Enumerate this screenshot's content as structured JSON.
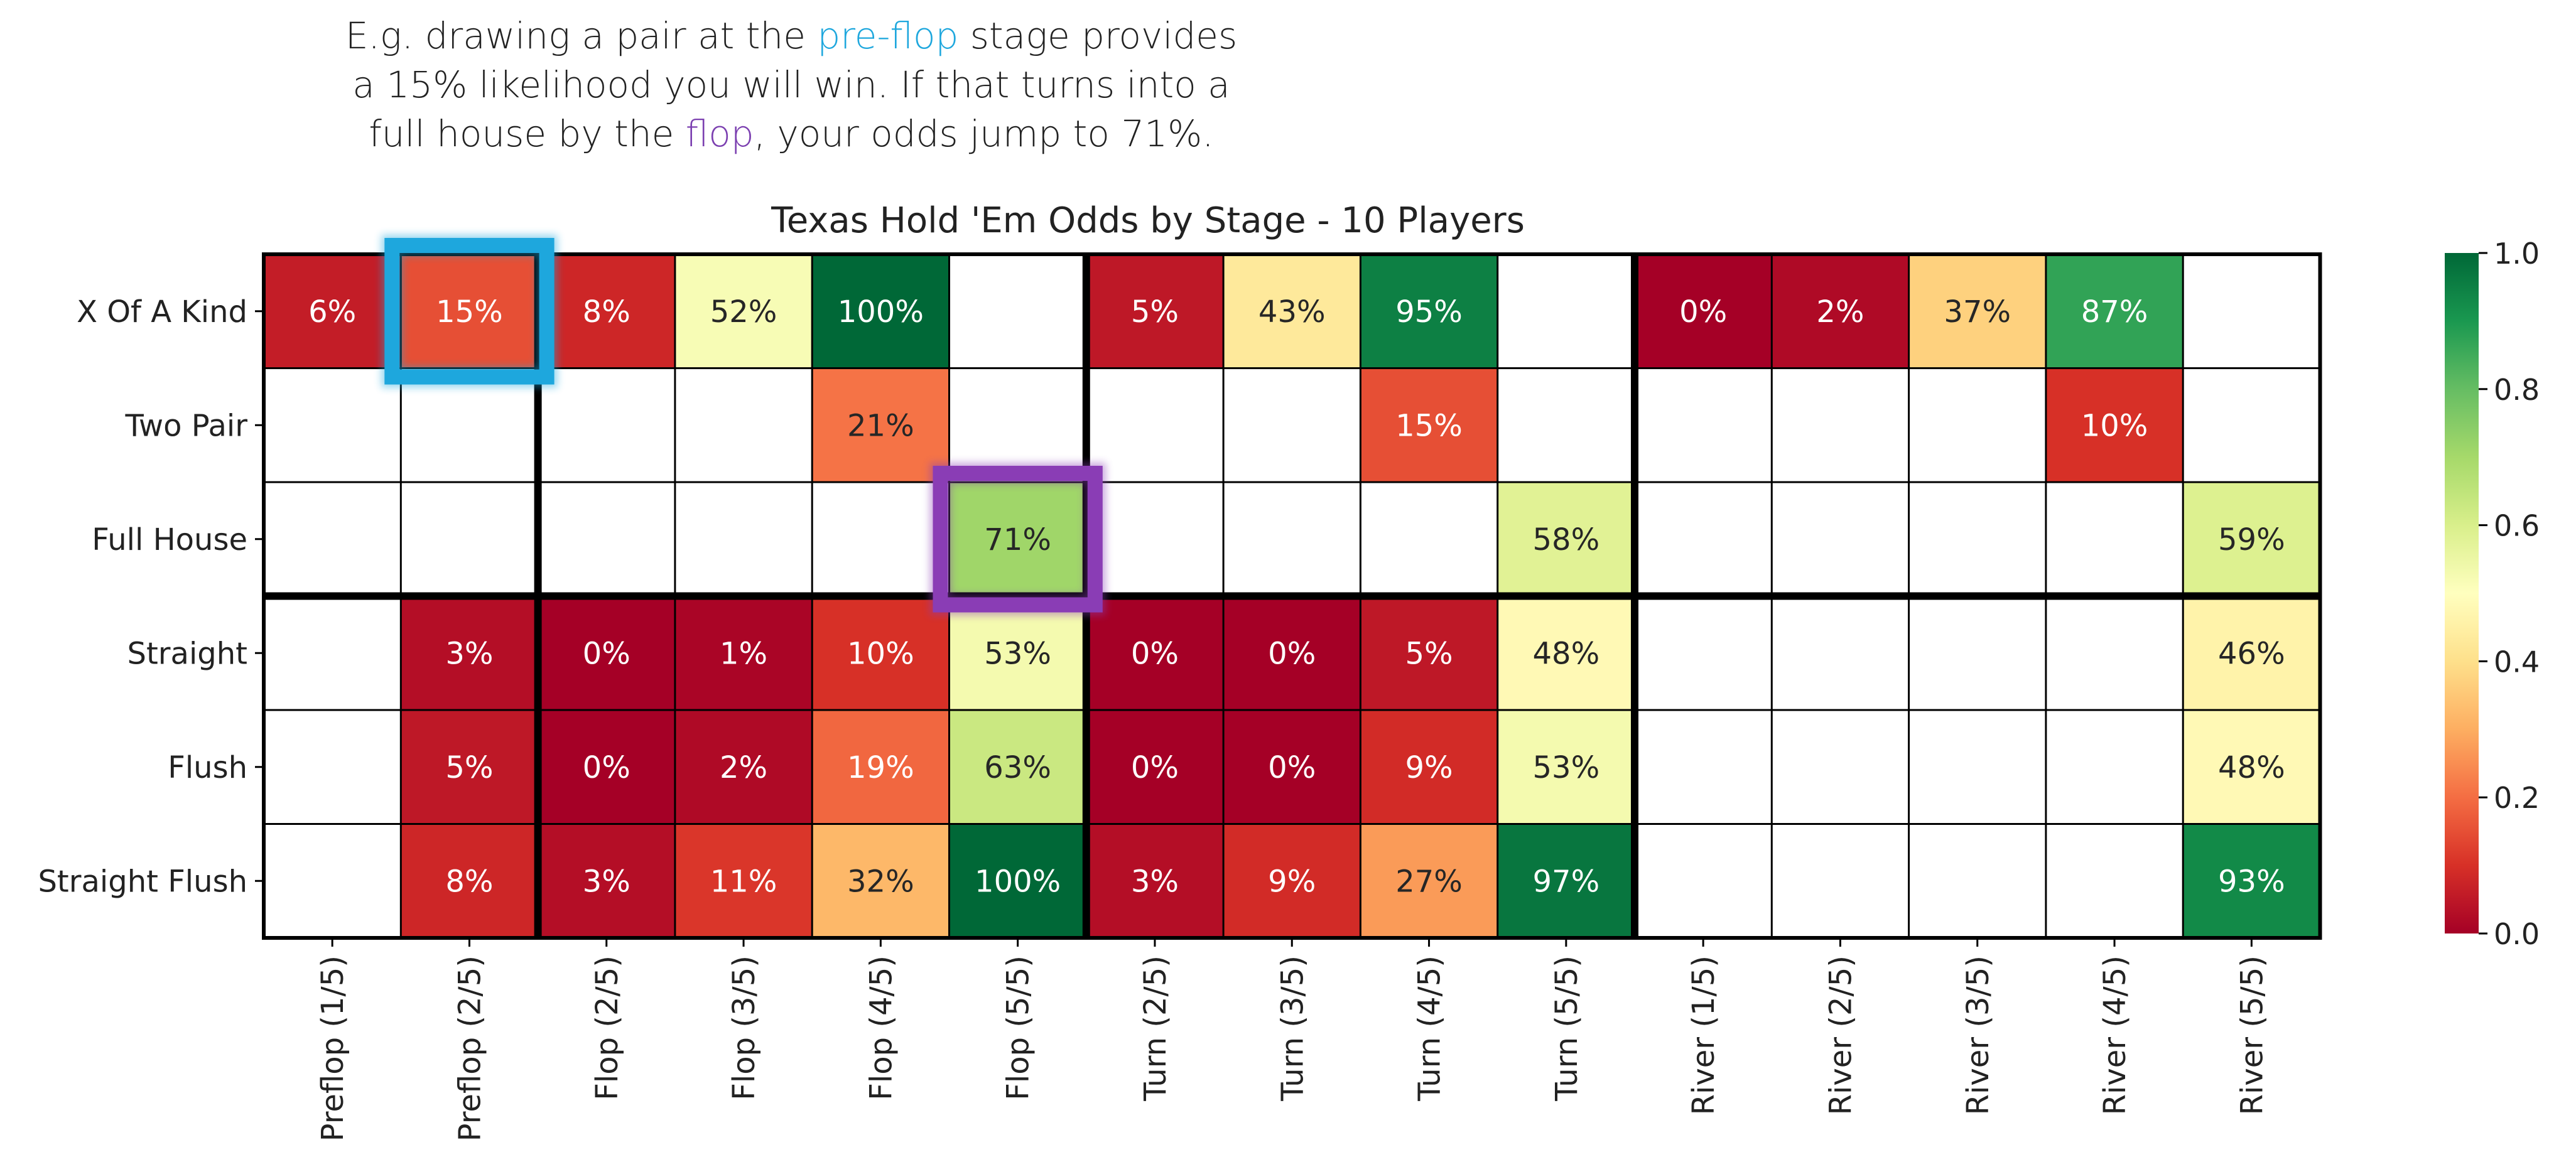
{
  "caption": {
    "line1_before": "E.g. drawing a pair at the ",
    "line1_highlight": "pre-flop",
    "line1_after": " stage provides",
    "line2": "a 15% likelihood you will win.  If that turns into a",
    "line3_before": "full house by the ",
    "line3_highlight": "flop",
    "line3_after": ", your odds jump to 71%.",
    "highlight_colors": {
      "pre-flop": "#1ea7dd",
      "flop": "#7b3fb0"
    }
  },
  "chart_data": {
    "type": "heatmap",
    "title": "Texas Hold 'Em Odds by Stage - 10 Players",
    "rows": [
      "X Of A Kind",
      "Two Pair",
      "Full House",
      "Straight",
      "Flush",
      "Straight Flush"
    ],
    "columns": [
      "Preflop (1/5)",
      "Preflop (2/5)",
      "Flop (2/5)",
      "Flop (3/5)",
      "Flop (4/5)",
      "Flop (5/5)",
      "Turn (2/5)",
      "Turn (3/5)",
      "Turn (4/5)",
      "Turn (5/5)",
      "River (1/5)",
      "River (2/5)",
      "River (3/5)",
      "River (4/5)",
      "River (5/5)"
    ],
    "values": [
      [
        0.06,
        0.15,
        0.08,
        0.52,
        1.0,
        null,
        0.05,
        0.43,
        0.95,
        null,
        0.0,
        0.02,
        0.37,
        0.87,
        null
      ],
      [
        null,
        null,
        null,
        null,
        0.21,
        null,
        null,
        null,
        0.15,
        null,
        null,
        null,
        null,
        0.1,
        null
      ],
      [
        null,
        null,
        null,
        null,
        null,
        0.71,
        null,
        null,
        null,
        0.58,
        null,
        null,
        null,
        null,
        0.59
      ],
      [
        null,
        0.03,
        0.0,
        0.01,
        0.1,
        0.53,
        0.0,
        0.0,
        0.05,
        0.48,
        null,
        null,
        null,
        null,
        0.46
      ],
      [
        null,
        0.05,
        0.0,
        0.02,
        0.19,
        0.63,
        0.0,
        0.0,
        0.09,
        0.53,
        null,
        null,
        null,
        null,
        0.48
      ],
      [
        null,
        0.08,
        0.03,
        0.11,
        0.32,
        1.0,
        0.03,
        0.09,
        0.27,
        0.97,
        null,
        null,
        null,
        null,
        0.93
      ]
    ],
    "labels": [
      [
        "6%",
        "15%",
        "8%",
        "52%",
        "100%",
        "",
        "5%",
        "43%",
        "95%",
        "",
        "0%",
        "2%",
        "37%",
        "87%",
        ""
      ],
      [
        "",
        "",
        "",
        "",
        "21%",
        "",
        "",
        "",
        "15%",
        "",
        "",
        "",
        "",
        "10%",
        ""
      ],
      [
        "",
        "",
        "",
        "",
        "",
        "71%",
        "",
        "",
        "",
        "58%",
        "",
        "",
        "",
        "",
        "59%"
      ],
      [
        "",
        "3%",
        "0%",
        "1%",
        "10%",
        "53%",
        "0%",
        "0%",
        "5%",
        "48%",
        "",
        "",
        "",
        "",
        "46%"
      ],
      [
        "",
        "5%",
        "0%",
        "2%",
        "19%",
        "63%",
        "0%",
        "0%",
        "9%",
        "53%",
        "",
        "",
        "",
        "",
        "48%"
      ],
      [
        "",
        "8%",
        "3%",
        "11%",
        "32%",
        "100%",
        "3%",
        "9%",
        "27%",
        "97%",
        "",
        "",
        "",
        "",
        "93%"
      ]
    ],
    "colormap": "RdYlGn",
    "vmin": 0.0,
    "vmax": 1.0,
    "colorbar_ticks": [
      "0.0",
      "0.2",
      "0.4",
      "0.6",
      "0.8",
      "1.0"
    ],
    "highlights": [
      {
        "row": "X Of A Kind",
        "column": "Preflop (2/5)",
        "color": "#1ea7dd"
      },
      {
        "row": "Full House",
        "column": "Flop (5/5)",
        "color": "#8a3db5"
      }
    ]
  }
}
